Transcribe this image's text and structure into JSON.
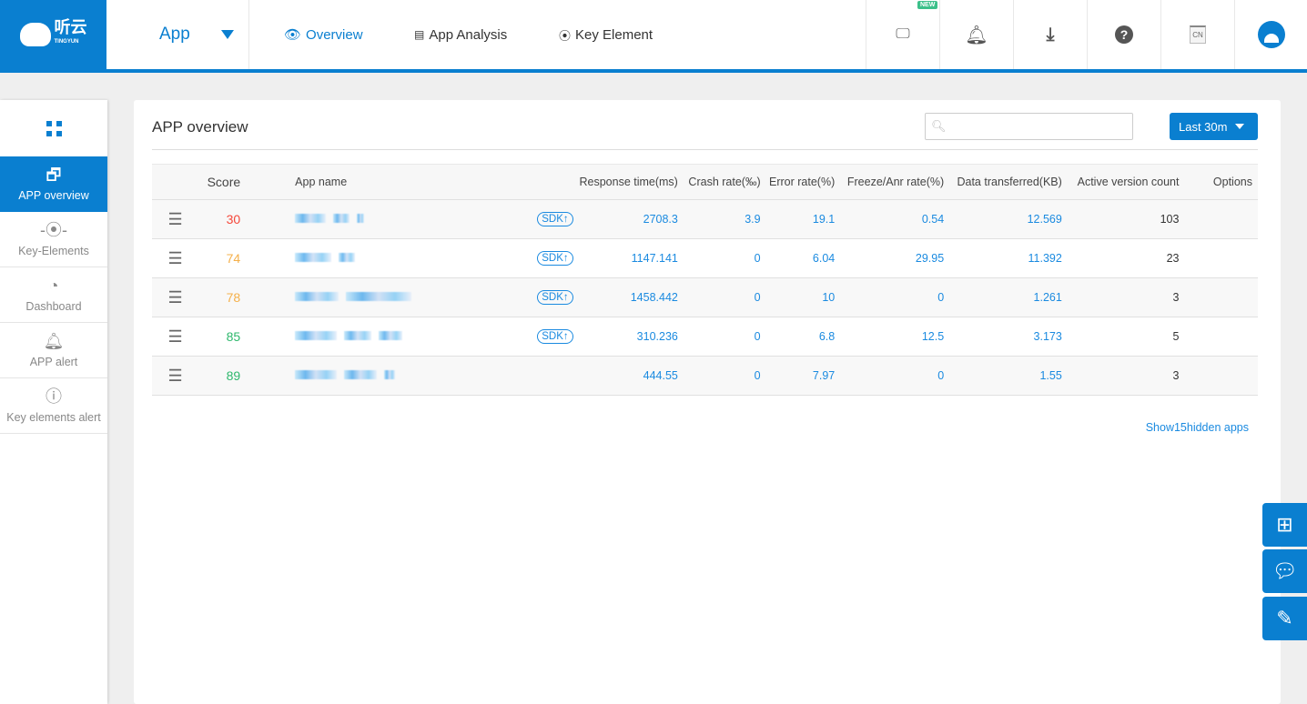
{
  "brand": {
    "logo_text": "听云",
    "logo_sub": "TINGYUN"
  },
  "header": {
    "app_selector": "App",
    "nav": [
      {
        "label": "Overview",
        "icon": "eye-icon"
      },
      {
        "label": "App Analysis",
        "icon": "table-icon"
      },
      {
        "label": "Key Element",
        "icon": "target-icon"
      }
    ],
    "tools": {
      "new_badge": "NEW",
      "lang": "CN"
    }
  },
  "sidebar": {
    "items": [
      {
        "label": "APP overview",
        "icon": "window-icon"
      },
      {
        "label": "Key-Elements",
        "icon": "node-icon"
      },
      {
        "label": "Dashboard",
        "icon": "gauge-icon"
      },
      {
        "label": "APP alert",
        "icon": "bell-icon"
      },
      {
        "label": "Key elements alert",
        "icon": "alert-circle-icon"
      }
    ]
  },
  "main": {
    "title": "APP overview",
    "search_placeholder": "",
    "time_range": "Last 30m",
    "columns": [
      "",
      "Score",
      "App name",
      "Response time(ms)",
      "Crash rate(‰)",
      "Error rate(%)",
      "Freeze/Anr rate(%)",
      "Data transferred(KB)",
      "Active version count",
      "Options"
    ],
    "rows": [
      {
        "score": "30",
        "score_color": "#f5483b",
        "sdk": "SDK↑",
        "response": "2708.3",
        "crash": "3.9",
        "error": "19.1",
        "freeze": "0.54",
        "data": "12.569",
        "active": "103"
      },
      {
        "score": "74",
        "score_color": "#f5b04a",
        "sdk": "SDK↑",
        "response": "1147.141",
        "crash": "0",
        "error": "6.04",
        "freeze": "29.95",
        "data": "11.392",
        "active": "23"
      },
      {
        "score": "78",
        "score_color": "#f5b04a",
        "sdk": "SDK↑",
        "response": "1458.442",
        "crash": "0",
        "error": "10",
        "freeze": "0",
        "data": "1.261",
        "active": "3"
      },
      {
        "score": "85",
        "score_color": "#2fb86d",
        "sdk": "SDK↑",
        "response": "310.236",
        "crash": "0",
        "error": "6.8",
        "freeze": "12.5",
        "data": "3.173",
        "active": "5"
      },
      {
        "score": "89",
        "score_color": "#2fb86d",
        "sdk": "",
        "response": "444.55",
        "crash": "0",
        "error": "7.97",
        "freeze": "0",
        "data": "1.55",
        "active": "3"
      }
    ],
    "show_hidden": "Show15hidden apps"
  },
  "colors": {
    "accent": "#0a7fd0"
  }
}
